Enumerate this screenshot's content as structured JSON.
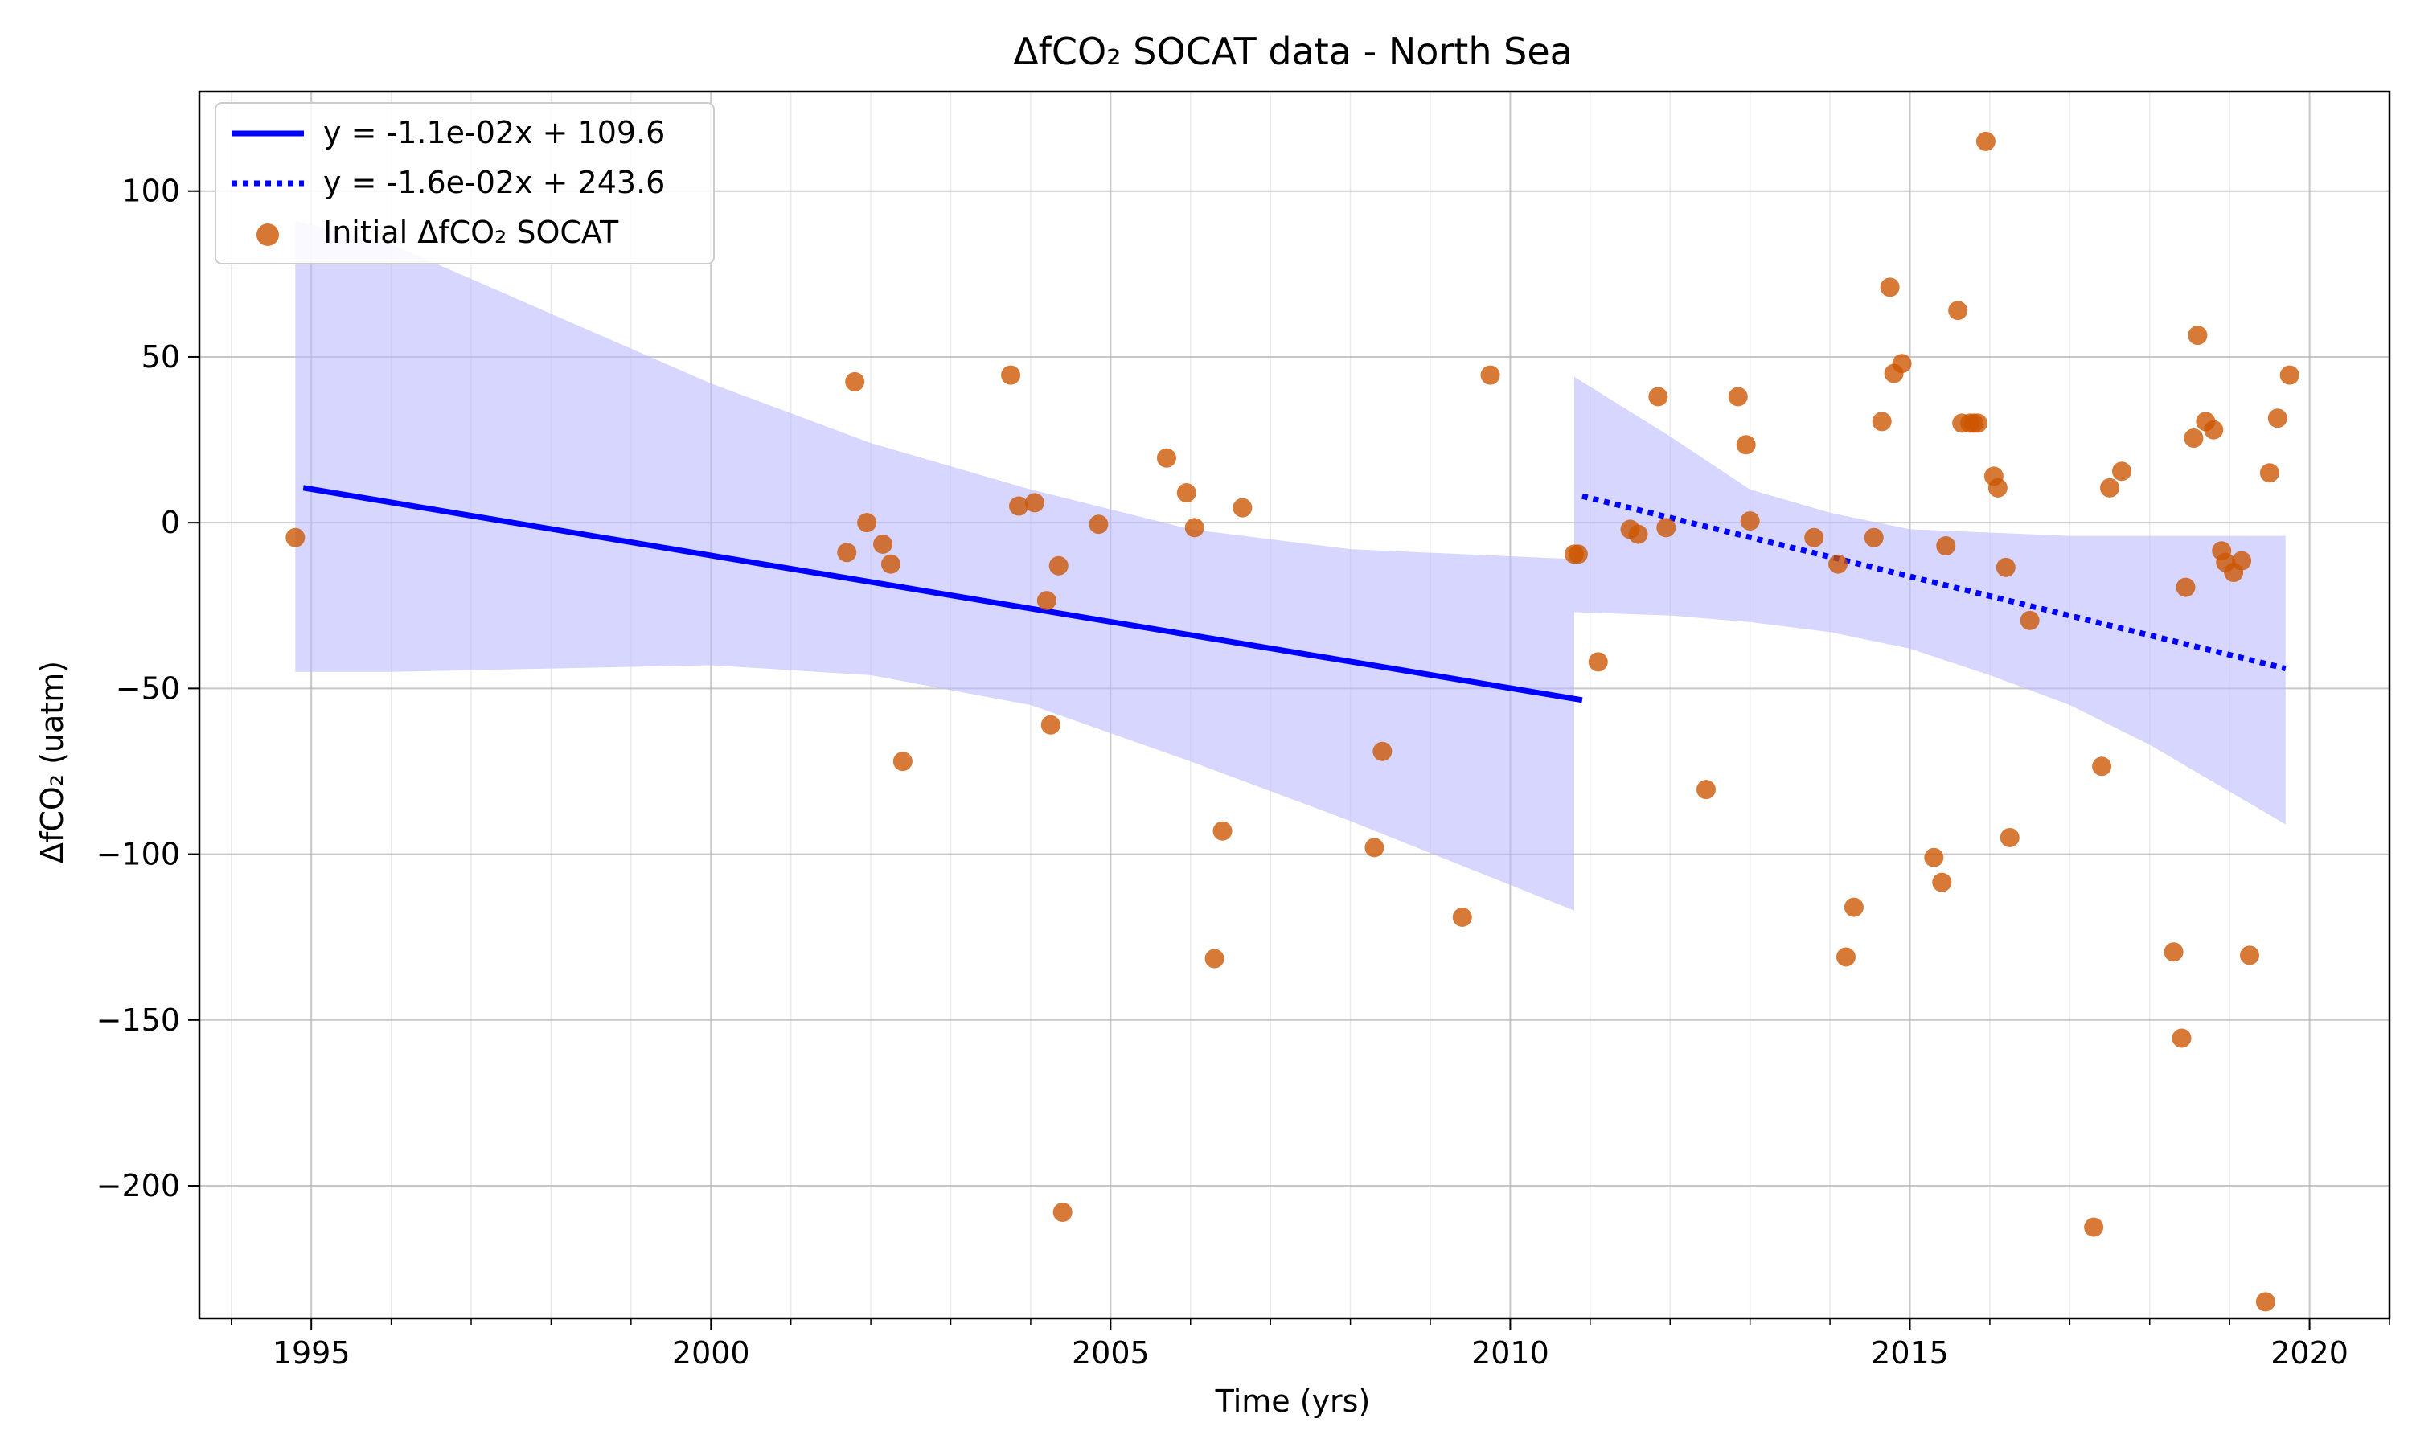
{
  "chart_data": {
    "type": "scatter",
    "title": "ΔfCO₂ SOCAT data - North Sea",
    "xlabel": "Time (yrs)",
    "ylabel": "ΔfCO₂ (uatm)",
    "xlim": [
      1993.6,
      2021.0
    ],
    "ylim": [
      -240,
      130
    ],
    "x_ticks": [
      1995,
      2000,
      2005,
      2010,
      2015,
      2020
    ],
    "x_tick_labels": [
      "1995",
      "2000",
      "2005",
      "2010",
      "2015",
      "2020"
    ],
    "y_ticks": [
      -200,
      -150,
      -100,
      -50,
      0,
      50,
      100
    ],
    "y_tick_labels": [
      "−200",
      "−150",
      "−100",
      "−50",
      "0",
      "50",
      "100"
    ],
    "grid": true,
    "legend_position": "top-left",
    "colors": {
      "points": "#cc5500",
      "trend": "#0000ff",
      "band": "#bbbbff"
    },
    "series": [
      {
        "name": "y = -1.1e-02x + 109.6",
        "kind": "line",
        "style": "solid",
        "x": [
          1994.9,
          2010.9
        ],
        "y": [
          10.5,
          -53.5
        ]
      },
      {
        "name": "y = -1.6e-02x + 243.6",
        "kind": "line",
        "style": "dotted",
        "x": [
          2010.9,
          2019.7
        ],
        "y": [
          8,
          -44
        ]
      },
      {
        "name": "Initial ΔfCO₂ SOCAT",
        "kind": "scatter",
        "points": [
          [
            1994.8,
            -4.5
          ],
          [
            2001.7,
            -9
          ],
          [
            2001.8,
            42.5
          ],
          [
            2001.95,
            0
          ],
          [
            2002.15,
            -6.5
          ],
          [
            2002.25,
            -12.5
          ],
          [
            2002.4,
            -72
          ],
          [
            2003.75,
            44.5
          ],
          [
            2003.85,
            5
          ],
          [
            2004.05,
            6
          ],
          [
            2004.2,
            -23.5
          ],
          [
            2004.25,
            -61
          ],
          [
            2004.35,
            -13
          ],
          [
            2004.4,
            -208
          ],
          [
            2004.85,
            -0.5
          ],
          [
            2005.7,
            19.5
          ],
          [
            2005.95,
            9
          ],
          [
            2006.05,
            -1.5
          ],
          [
            2006.3,
            -131.5
          ],
          [
            2006.4,
            -93
          ],
          [
            2006.65,
            4.5
          ],
          [
            2008.3,
            -98
          ],
          [
            2008.4,
            -69
          ],
          [
            2009.4,
            -119
          ],
          [
            2009.75,
            44.5
          ],
          [
            2010.8,
            -9.5
          ],
          [
            2010.85,
            -9.5
          ],
          [
            2011.1,
            -42
          ],
          [
            2011.5,
            -2
          ],
          [
            2011.6,
            -3.5
          ],
          [
            2011.85,
            38
          ],
          [
            2011.95,
            -1.5
          ],
          [
            2012.45,
            -80.5
          ],
          [
            2012.85,
            38
          ],
          [
            2012.95,
            23.5
          ],
          [
            2013.0,
            0.5
          ],
          [
            2013.8,
            -4.5
          ],
          [
            2014.1,
            -12.5
          ],
          [
            2014.2,
            -131
          ],
          [
            2014.3,
            -116
          ],
          [
            2014.55,
            -4.5
          ],
          [
            2014.65,
            30.5
          ],
          [
            2014.75,
            71
          ],
          [
            2014.8,
            45
          ],
          [
            2014.9,
            48
          ],
          [
            2015.3,
            -101
          ],
          [
            2015.4,
            -108.5
          ],
          [
            2015.45,
            -7
          ],
          [
            2015.6,
            64
          ],
          [
            2015.65,
            30
          ],
          [
            2015.75,
            30
          ],
          [
            2015.8,
            30
          ],
          [
            2015.85,
            30
          ],
          [
            2015.95,
            115
          ],
          [
            2016.05,
            14
          ],
          [
            2016.1,
            10.5
          ],
          [
            2016.2,
            -13.5
          ],
          [
            2016.25,
            -95
          ],
          [
            2016.5,
            -29.5
          ],
          [
            2017.3,
            -212.5
          ],
          [
            2017.4,
            -73.5
          ],
          [
            2017.5,
            10.5
          ],
          [
            2017.65,
            15.5
          ],
          [
            2018.3,
            -129.5
          ],
          [
            2018.4,
            -155.5
          ],
          [
            2018.45,
            -19.5
          ],
          [
            2018.55,
            25.5
          ],
          [
            2018.6,
            56.5
          ],
          [
            2018.7,
            30.5
          ],
          [
            2018.8,
            28
          ],
          [
            2018.9,
            -8.5
          ],
          [
            2018.95,
            -12
          ],
          [
            2019.05,
            -15
          ],
          [
            2019.15,
            -11.5
          ],
          [
            2019.25,
            -130.5
          ],
          [
            2019.45,
            -235
          ],
          [
            2019.5,
            15
          ],
          [
            2019.6,
            31.5
          ],
          [
            2019.75,
            44.5
          ]
        ]
      }
    ],
    "confidence_band": {
      "segments": [
        {
          "x": [
            1994.8,
            1996.0,
            1998.0,
            2000.0,
            2002.0,
            2004.0,
            2006.0,
            2008.0,
            2010.8
          ],
          "upper": [
            91,
            84,
            63,
            42,
            24,
            10,
            -2,
            -8,
            -11
          ],
          "lower": [
            -45,
            -45,
            -44,
            -43,
            -46,
            -55,
            -72,
            -90,
            -117
          ]
        },
        {
          "x": [
            2010.8,
            2012.0,
            2013.0,
            2014.0,
            2015.0,
            2016.0,
            2017.0,
            2018.0,
            2019.7
          ],
          "upper": [
            44,
            26,
            10,
            3,
            -2,
            -3,
            -4,
            -4,
            -4
          ],
          "lower": [
            -27,
            -28,
            -30,
            -33,
            -38,
            -46,
            -55,
            -67,
            -91
          ]
        }
      ]
    }
  }
}
